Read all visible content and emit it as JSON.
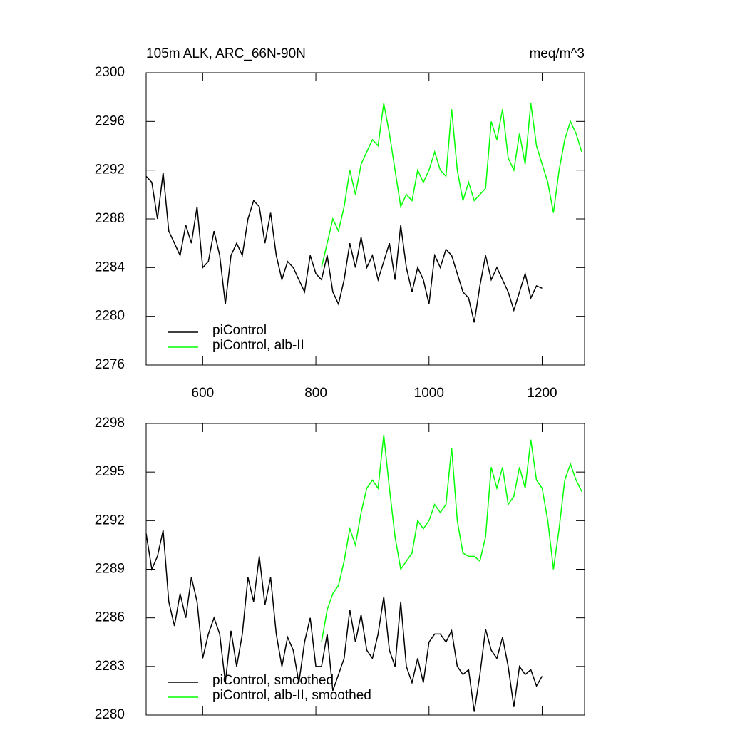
{
  "chart_data": [
    {
      "type": "line",
      "title": "105m ALK, ARC_66N-90N",
      "units": "meq/m^3",
      "xlim": [
        500,
        1275
      ],
      "xticks": [
        600,
        800,
        1000,
        1200
      ],
      "xticklabels": true,
      "ylim": [
        2276,
        2300
      ],
      "yticks": [
        2276,
        2280,
        2284,
        2288,
        2292,
        2296,
        2300
      ],
      "legend": "lower left",
      "series": [
        {
          "name": "piControl",
          "color": "#000000",
          "x": [
            500,
            510,
            520,
            530,
            540,
            550,
            560,
            570,
            580,
            590,
            600,
            610,
            620,
            630,
            640,
            650,
            660,
            670,
            680,
            690,
            700,
            710,
            720,
            730,
            740,
            750,
            760,
            770,
            780,
            790,
            800,
            810,
            820,
            830,
            840,
            850,
            860,
            870,
            880,
            890,
            900,
            910,
            920,
            930,
            940,
            950,
            960,
            970,
            980,
            990,
            1000,
            1010,
            1020,
            1030,
            1040,
            1050,
            1060,
            1070,
            1080,
            1090,
            1100,
            1110,
            1120,
            1130,
            1140,
            1150,
            1160,
            1170,
            1180,
            1190,
            1200
          ],
          "values": [
            2291.5,
            2291,
            2288,
            2291.8,
            2287,
            2286,
            2285,
            2287.5,
            2286,
            2289,
            2284,
            2284.5,
            2287,
            2285,
            2281,
            2285,
            2286,
            2285,
            2288,
            2289.5,
            2289,
            2286,
            2288.5,
            2285,
            2283,
            2284.5,
            2284,
            2283,
            2282,
            2285,
            2283.5,
            2283,
            2285,
            2282,
            2281,
            2283,
            2286,
            2284,
            2286.5,
            2284,
            2285,
            2283,
            2284.5,
            2286,
            2283,
            2287.5,
            2284,
            2282,
            2284,
            2283,
            2281,
            2285,
            2284,
            2285.5,
            2285,
            2283.5,
            2282,
            2281.5,
            2279.5,
            2282.5,
            2285,
            2283,
            2284,
            2283,
            2282,
            2280.5,
            2282,
            2283.5,
            2281.5,
            2282.5,
            2282.3
          ]
        },
        {
          "name": "piControl, alb-II",
          "color": "#00ff00",
          "x": [
            810,
            820,
            830,
            840,
            850,
            860,
            870,
            880,
            890,
            900,
            910,
            920,
            930,
            940,
            950,
            960,
            970,
            980,
            990,
            1000,
            1010,
            1020,
            1030,
            1040,
            1050,
            1060,
            1070,
            1080,
            1090,
            1100,
            1110,
            1120,
            1130,
            1140,
            1150,
            1160,
            1170,
            1180,
            1190,
            1200,
            1210,
            1220,
            1230,
            1240,
            1250,
            1260,
            1270
          ],
          "values": [
            2284,
            2286,
            2288,
            2287,
            2289,
            2292,
            2290,
            2292.5,
            2293.5,
            2294.5,
            2294,
            2297.5,
            2295,
            2292,
            2289,
            2290,
            2289.5,
            2292,
            2291,
            2292,
            2293.5,
            2292,
            2291.5,
            2297,
            2292,
            2289.5,
            2291,
            2289.5,
            2290,
            2290.5,
            2296,
            2294.5,
            2297,
            2293,
            2292,
            2295,
            2292.5,
            2297.5,
            2294,
            2292.5,
            2291,
            2288.5,
            2292,
            2294.5,
            2296,
            2295,
            2293.5
          ]
        }
      ]
    },
    {
      "type": "line",
      "xlim": [
        500,
        1275
      ],
      "xticks": [
        600,
        800,
        1000,
        1200
      ],
      "xticklabels": false,
      "ylim": [
        2280,
        2298
      ],
      "yticks": [
        2280,
        2283,
        2286,
        2289,
        2292,
        2295,
        2298
      ],
      "legend": "lower left",
      "series": [
        {
          "name": "piControl, smoothed",
          "color": "#000000",
          "x": [
            500,
            510,
            520,
            530,
            540,
            550,
            560,
            570,
            580,
            590,
            600,
            610,
            620,
            630,
            640,
            650,
            660,
            670,
            680,
            690,
            700,
            710,
            720,
            730,
            740,
            750,
            760,
            770,
            780,
            790,
            800,
            810,
            820,
            830,
            840,
            850,
            860,
            870,
            880,
            890,
            900,
            910,
            920,
            930,
            940,
            950,
            960,
            970,
            980,
            990,
            1000,
            1010,
            1020,
            1030,
            1040,
            1050,
            1060,
            1070,
            1080,
            1090,
            1100,
            1110,
            1120,
            1130,
            1140,
            1150,
            1160,
            1170,
            1180,
            1190,
            1200
          ],
          "values": [
            2291.2,
            2289,
            2289.8,
            2291.4,
            2287,
            2285.5,
            2287.5,
            2286,
            2288.5,
            2287,
            2283.5,
            2285,
            2286,
            2285,
            2282,
            2285.2,
            2283,
            2285,
            2288.5,
            2287,
            2289.8,
            2286.8,
            2288.5,
            2285,
            2283,
            2284.8,
            2284,
            2282,
            2284.5,
            2286,
            2283,
            2283,
            2285,
            2281.5,
            2282.5,
            2283.5,
            2286.5,
            2284.5,
            2286.2,
            2284,
            2283.5,
            2285,
            2287.3,
            2284,
            2283,
            2287,
            2283,
            2282,
            2283.5,
            2282,
            2284.5,
            2285,
            2285,
            2284.5,
            2285.2,
            2283,
            2282.5,
            2282.8,
            2280.2,
            2282.5,
            2285.3,
            2284,
            2283.5,
            2284.8,
            2283,
            2280.5,
            2283,
            2282.5,
            2282.8,
            2281.8,
            2282.4
          ]
        },
        {
          "name": "piControl, alb-II, smoothed",
          "color": "#00ff00",
          "x": [
            810,
            820,
            830,
            840,
            850,
            860,
            870,
            880,
            890,
            900,
            910,
            920,
            930,
            940,
            950,
            960,
            970,
            980,
            990,
            1000,
            1010,
            1020,
            1030,
            1040,
            1050,
            1060,
            1070,
            1080,
            1090,
            1100,
            1110,
            1120,
            1130,
            1140,
            1150,
            1160,
            1170,
            1180,
            1190,
            1200,
            1210,
            1220,
            1230,
            1240,
            1250,
            1260,
            1270
          ],
          "values": [
            2284.5,
            2286.5,
            2287.5,
            2288,
            2289.5,
            2291.5,
            2290.5,
            2292.5,
            2294,
            2294.5,
            2294,
            2297.3,
            2294,
            2291,
            2289,
            2289.5,
            2290,
            2292,
            2291.5,
            2292,
            2293,
            2292.5,
            2293,
            2296.5,
            2292,
            2290,
            2289.8,
            2289.8,
            2289.5,
            2291,
            2295.3,
            2294,
            2295.3,
            2293,
            2293.5,
            2295.3,
            2294,
            2297,
            2294.5,
            2294,
            2292,
            2289,
            2291.5,
            2294.5,
            2295.5,
            2294.5,
            2293.8
          ]
        }
      ]
    }
  ]
}
